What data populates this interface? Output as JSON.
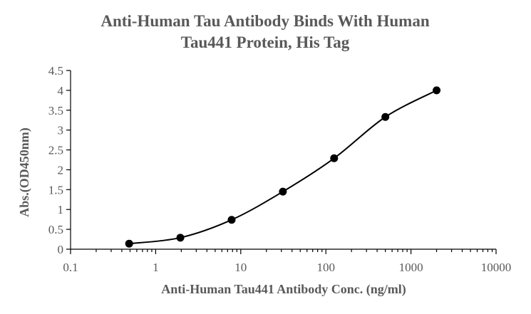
{
  "chart_data": {
    "type": "scatter",
    "title": "Anti-Human Tau Antibody Binds With Human Tau441 Protein, His Tag",
    "title_lines": [
      "Anti-Human Tau Antibody Binds With Human",
      "Tau441 Protein, His Tag"
    ],
    "xlabel": "Anti-Human Tau441 Antibody Conc. (ng/ml)",
    "ylabel": "Abs.(OD450nm)",
    "x_scale": "log",
    "xlim": [
      0.1,
      10000
    ],
    "ylim": [
      0,
      4.5
    ],
    "x_ticks": [
      0.1,
      1,
      10,
      100,
      1000,
      10000
    ],
    "x_tick_labels": [
      "0.1",
      "1",
      "10",
      "100",
      "1000",
      "10000"
    ],
    "y_ticks": [
      0,
      0.5,
      1,
      1.5,
      2,
      2.5,
      3,
      3.5,
      4,
      4.5
    ],
    "y_tick_labels": [
      "0",
      "0.5",
      "1",
      "1.5",
      "2",
      "2.5",
      "3",
      "3.5",
      "4",
      "4.5"
    ],
    "grid": false,
    "legend": "none",
    "series": [
      {
        "x": [
          0.488,
          1.95,
          7.81,
          31.25,
          125,
          500,
          2000
        ],
        "y": [
          0.14,
          0.29,
          0.74,
          1.45,
          2.29,
          3.33,
          4.0
        ],
        "marker": "circle",
        "line": "smooth",
        "color": "#000000"
      }
    ]
  }
}
